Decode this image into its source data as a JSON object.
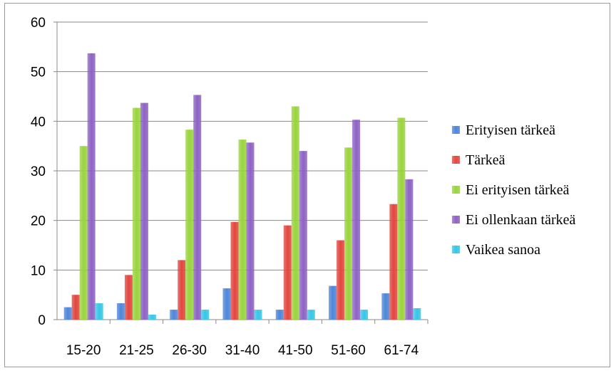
{
  "chart_data": {
    "type": "bar",
    "categories": [
      "15-20",
      "21-25",
      "26-30",
      "31-40",
      "41-50",
      "51-60",
      "61-74"
    ],
    "ylim": [
      0,
      60
    ],
    "yticks": [
      0,
      10,
      20,
      30,
      40,
      50,
      60
    ],
    "grid": true,
    "legend_position": "right",
    "series": [
      {
        "name": "Erityisen tärkeä",
        "color": "#4f86d9",
        "values": [
          2.5,
          3.3,
          2.0,
          6.3,
          2.0,
          6.8,
          5.3
        ]
      },
      {
        "name": "Tärkeä",
        "color": "#e2473f",
        "values": [
          5.0,
          9.0,
          12.0,
          19.7,
          19.0,
          16.0,
          23.3
        ]
      },
      {
        "name": "Ei erityisen tärkeä",
        "color": "#9ad43e",
        "values": [
          35.0,
          42.7,
          38.3,
          36.3,
          43.0,
          34.7,
          40.7
        ]
      },
      {
        "name": "Ei ollenkaan tärkeä",
        "color": "#8e63c4",
        "values": [
          53.7,
          43.7,
          45.3,
          35.7,
          34.0,
          40.3,
          28.3
        ]
      },
      {
        "name": "Vaikea sanoa",
        "color": "#38c6e6",
        "values": [
          3.3,
          1.0,
          2.0,
          2.0,
          2.0,
          2.0,
          2.3
        ]
      }
    ]
  }
}
